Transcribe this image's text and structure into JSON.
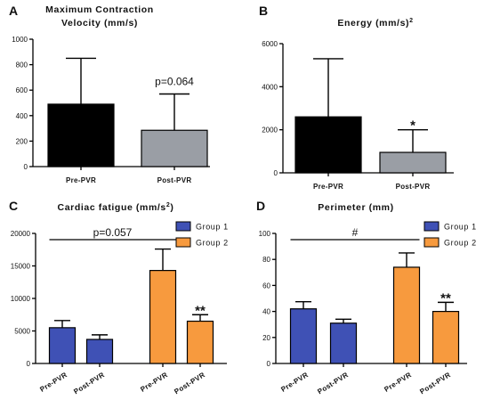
{
  "chart_data": [
    {
      "panel": "A",
      "type": "bar",
      "title": "Maximum Contraction",
      "title_line2": "Velocity (mm/s)",
      "categories": [
        "Pre-PVR",
        "Post-PVR"
      ],
      "values": [
        490,
        285
      ],
      "errors": [
        360,
        285
      ],
      "colors": [
        "#000000",
        "#9a9ea5"
      ],
      "ylim": [
        0,
        1000
      ],
      "yticks": [
        0,
        200,
        400,
        600,
        800,
        1000
      ],
      "annotations": [
        {
          "text": "p=0.064",
          "category": 1
        }
      ]
    },
    {
      "panel": "B",
      "type": "bar",
      "title": "Energy (mm/s)",
      "title_superscript": "2",
      "categories": [
        "Pre-PVR",
        "Post-PVR"
      ],
      "values": [
        2600,
        950
      ],
      "errors": [
        2700,
        1050
      ],
      "colors": [
        "#000000",
        "#9a9ea5"
      ],
      "ylim": [
        0,
        6000
      ],
      "yticks": [
        0,
        2000,
        4000,
        6000
      ],
      "annotations": [
        {
          "text": "*",
          "category": 1
        }
      ]
    },
    {
      "panel": "C",
      "type": "bar",
      "title": "Cardiac fatigue (mm/s",
      "title_superscript": "2",
      "title_suffix": ")",
      "categories": [
        "Pre-PVR",
        "Post-PVR",
        "Pre-PVR",
        "Post-PVR"
      ],
      "groups": [
        "Group 1",
        "Group 1",
        "Group 2",
        "Group 2"
      ],
      "values": [
        5500,
        3700,
        14300,
        6500
      ],
      "errors": [
        1100,
        700,
        3300,
        1000
      ],
      "ylim": [
        0,
        20000
      ],
      "yticks": [
        0,
        5000,
        10000,
        15000,
        20000
      ],
      "legend": [
        {
          "name": "Group 1",
          "color": "#3f51b5"
        },
        {
          "name": "Group 2",
          "color": "#f79a3e"
        }
      ],
      "legend_position": "top-right",
      "bracket": {
        "text": "p=0.057",
        "from": 0,
        "to": 2
      },
      "annotations": [
        {
          "text": "**",
          "category": 3
        }
      ]
    },
    {
      "panel": "D",
      "type": "bar",
      "title": "Perimeter (mm)",
      "categories": [
        "Pre-PVR",
        "Post-PVR",
        "Pre-PVR",
        "Post-PVR"
      ],
      "groups": [
        "Group 1",
        "Group 1",
        "Group 2",
        "Group 2"
      ],
      "values": [
        42,
        31,
        74,
        40
      ],
      "errors": [
        5.5,
        3,
        11,
        7
      ],
      "ylim": [
        0,
        100
      ],
      "yticks": [
        0,
        20,
        40,
        60,
        80,
        100
      ],
      "legend": [
        {
          "name": "Group 1",
          "color": "#3f51b5"
        },
        {
          "name": "Group 2",
          "color": "#f79a3e"
        }
      ],
      "legend_position": "top-right",
      "bracket": {
        "text": "#",
        "from": 0,
        "to": 2
      },
      "annotations": [
        {
          "text": "**",
          "category": 3
        }
      ]
    }
  ]
}
